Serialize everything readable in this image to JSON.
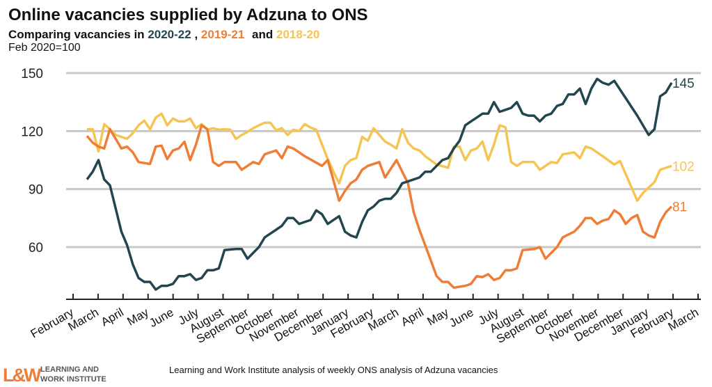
{
  "chart_data": {
    "type": "line",
    "title": "Online vacancies supplied by Adzuna to ONS",
    "subtitle_prefix": "Comparing vacancies in",
    "subtitle_and": "and",
    "subtitle_comma": ",",
    "ylabel": "Feb 2020=100",
    "ylim": [
      33,
      150
    ],
    "yticks": [
      60,
      90,
      120,
      150
    ],
    "grid": true,
    "xlabel": "",
    "x_unit": "weeks from start of February",
    "xticks": [
      "February",
      "March",
      "April",
      "May",
      "June",
      "July",
      "August",
      "September",
      "October",
      "November",
      "December",
      "January",
      "February",
      "March",
      "April",
      "May",
      "June",
      "July",
      "August",
      "September",
      "October",
      "November",
      "December",
      "January",
      "February",
      "March"
    ],
    "series": [
      {
        "name": "2020-22",
        "color": "#23454f",
        "end_label": "145",
        "points": [
          [
            0,
            95
          ],
          [
            1,
            99
          ],
          [
            2,
            105
          ],
          [
            3,
            95
          ],
          [
            4,
            92
          ],
          [
            5,
            80
          ],
          [
            6,
            68
          ],
          [
            7,
            61
          ],
          [
            8,
            51
          ],
          [
            9,
            44
          ],
          [
            10,
            42
          ],
          [
            11,
            42
          ],
          [
            12,
            38
          ],
          [
            13,
            40
          ],
          [
            14,
            40
          ],
          [
            15,
            41
          ],
          [
            16,
            45
          ],
          [
            17,
            45
          ],
          [
            18,
            46
          ],
          [
            19,
            43
          ],
          [
            20,
            44
          ],
          [
            21,
            48
          ],
          [
            22,
            48
          ],
          [
            23,
            49
          ],
          [
            24,
            58.5
          ],
          [
            26,
            59
          ],
          [
            27,
            59
          ],
          [
            28,
            54
          ],
          [
            29,
            57
          ],
          [
            30,
            60
          ],
          [
            31,
            65
          ],
          [
            32,
            67
          ],
          [
            33,
            69
          ],
          [
            34,
            71
          ],
          [
            35,
            75
          ],
          [
            36,
            75
          ],
          [
            37,
            72
          ],
          [
            38,
            73
          ],
          [
            39,
            74
          ],
          [
            40,
            79
          ],
          [
            41,
            77
          ],
          [
            42,
            72
          ],
          [
            43,
            74
          ],
          [
            44,
            76
          ],
          [
            45,
            68
          ],
          [
            46,
            66
          ],
          [
            47,
            65
          ],
          [
            48,
            73
          ],
          [
            49,
            79
          ],
          [
            50,
            81
          ],
          [
            51,
            84
          ],
          [
            52,
            85
          ],
          [
            53,
            85
          ],
          [
            54,
            88
          ],
          [
            55,
            93
          ],
          [
            56,
            94
          ],
          [
            57,
            95
          ],
          [
            58,
            96
          ],
          [
            59,
            99
          ],
          [
            60,
            99
          ],
          [
            61,
            102
          ],
          [
            62,
            105
          ],
          [
            63,
            106
          ],
          [
            64,
            111
          ],
          [
            65,
            115
          ],
          [
            66,
            123
          ],
          [
            67,
            125
          ],
          [
            68,
            127
          ],
          [
            69,
            129
          ],
          [
            70,
            129
          ],
          [
            71,
            135
          ],
          [
            72,
            130
          ],
          [
            73,
            131
          ],
          [
            74,
            132
          ],
          [
            75,
            135
          ],
          [
            76,
            129
          ],
          [
            77,
            128
          ],
          [
            78,
            128
          ],
          [
            79,
            125
          ],
          [
            80,
            128
          ],
          [
            81,
            129
          ],
          [
            82,
            133
          ],
          [
            83,
            134
          ],
          [
            84,
            139
          ],
          [
            85,
            139
          ],
          [
            86,
            142
          ],
          [
            87,
            134
          ],
          [
            88,
            142
          ],
          [
            89,
            147
          ],
          [
            90,
            145
          ],
          [
            91,
            144
          ],
          [
            92,
            146
          ],
          [
            94,
            137
          ],
          [
            96,
            128
          ],
          [
            98,
            118
          ],
          [
            99,
            121
          ],
          [
            100,
            138
          ],
          [
            101,
            140
          ],
          [
            102,
            145
          ]
        ]
      },
      {
        "name": "2019-21",
        "color": "#ef7d35",
        "end_label": "81",
        "points": [
          [
            0,
            117.5
          ],
          [
            1,
            114
          ],
          [
            2,
            112
          ],
          [
            3,
            111
          ],
          [
            4,
            121
          ],
          [
            5,
            116
          ],
          [
            6,
            111
          ],
          [
            7,
            112
          ],
          [
            8,
            109
          ],
          [
            9,
            104
          ],
          [
            11,
            103
          ],
          [
            12,
            112
          ],
          [
            13,
            112.5
          ],
          [
            14,
            105.5
          ],
          [
            15,
            110
          ],
          [
            16,
            111
          ],
          [
            17,
            114.5
          ],
          [
            18,
            105
          ],
          [
            19,
            113
          ],
          [
            20,
            123
          ],
          [
            21,
            121
          ],
          [
            22,
            104
          ],
          [
            23,
            102
          ],
          [
            24,
            104
          ],
          [
            26,
            104
          ],
          [
            27,
            100
          ],
          [
            28,
            102
          ],
          [
            29,
            104
          ],
          [
            30,
            103
          ],
          [
            31,
            108
          ],
          [
            32,
            109
          ],
          [
            33,
            110
          ],
          [
            34,
            106
          ],
          [
            35,
            112
          ],
          [
            36,
            111
          ],
          [
            38,
            107
          ],
          [
            41,
            102
          ],
          [
            42,
            105
          ],
          [
            44,
            84
          ],
          [
            45,
            89
          ],
          [
            46,
            93
          ],
          [
            47,
            95
          ],
          [
            48,
            100
          ],
          [
            49,
            102
          ],
          [
            51,
            104
          ],
          [
            52,
            96
          ],
          [
            54,
            105
          ],
          [
            56,
            93
          ],
          [
            57,
            78
          ],
          [
            58,
            69
          ],
          [
            59,
            61
          ],
          [
            60,
            53
          ],
          [
            61,
            45
          ],
          [
            62,
            42
          ],
          [
            63,
            42
          ],
          [
            64,
            39
          ],
          [
            66,
            40
          ],
          [
            67,
            41
          ],
          [
            68,
            45
          ],
          [
            69,
            44.5
          ],
          [
            70,
            46
          ],
          [
            71,
            43
          ],
          [
            72,
            44
          ],
          [
            73,
            48
          ],
          [
            74,
            48
          ],
          [
            75,
            49
          ],
          [
            76,
            58.5
          ],
          [
            78,
            59
          ],
          [
            79,
            60
          ],
          [
            80,
            54
          ],
          [
            81,
            57
          ],
          [
            82,
            60
          ],
          [
            83,
            65
          ],
          [
            84,
            66.5
          ],
          [
            85,
            68
          ],
          [
            86,
            71
          ],
          [
            87,
            75
          ],
          [
            88,
            75
          ],
          [
            89,
            72
          ],
          [
            90,
            73.7
          ],
          [
            91,
            74.5
          ],
          [
            92,
            79
          ],
          [
            93,
            77
          ],
          [
            94,
            72
          ],
          [
            95,
            75
          ],
          [
            96,
            76.6
          ],
          [
            97,
            68
          ],
          [
            98,
            66
          ],
          [
            99,
            65
          ],
          [
            100,
            73
          ],
          [
            101,
            78
          ],
          [
            102,
            81
          ]
        ]
      },
      {
        "name": "2018-20",
        "color": "#f6c453",
        "end_label": "102",
        "points": [
          [
            0,
            121
          ],
          [
            1,
            121
          ],
          [
            2,
            109.5
          ],
          [
            3,
            123.6
          ],
          [
            4,
            121
          ],
          [
            5,
            118
          ],
          [
            7,
            116
          ],
          [
            8,
            119
          ],
          [
            9,
            123
          ],
          [
            10,
            125.4
          ],
          [
            11,
            121
          ],
          [
            12,
            127
          ],
          [
            13,
            129
          ],
          [
            14,
            123
          ],
          [
            15,
            126.5
          ],
          [
            16,
            125
          ],
          [
            17,
            125
          ],
          [
            18,
            126.5
          ],
          [
            19,
            121.5
          ],
          [
            20,
            123.6
          ],
          [
            21,
            120.7
          ],
          [
            22,
            121.5
          ],
          [
            23,
            120.7
          ],
          [
            24,
            121
          ],
          [
            25,
            120.7
          ],
          [
            26,
            116
          ],
          [
            27,
            118
          ],
          [
            28,
            119.6
          ],
          [
            29,
            121.5
          ],
          [
            30,
            123
          ],
          [
            31,
            124.3
          ],
          [
            32,
            124.3
          ],
          [
            33,
            120.4
          ],
          [
            34,
            121.5
          ],
          [
            35,
            118
          ],
          [
            36,
            120.7
          ],
          [
            37,
            120
          ],
          [
            38,
            123.6
          ],
          [
            39,
            121.8
          ],
          [
            40,
            120.7
          ],
          [
            42,
            105.5
          ],
          [
            43,
            99
          ],
          [
            44,
            93
          ],
          [
            45,
            102
          ],
          [
            46,
            105
          ],
          [
            47,
            106
          ],
          [
            48,
            117
          ],
          [
            49,
            115
          ],
          [
            50,
            121.5
          ],
          [
            51,
            118
          ],
          [
            52,
            114.6
          ],
          [
            53,
            113
          ],
          [
            54,
            111
          ],
          [
            55,
            121
          ],
          [
            56,
            114
          ],
          [
            57,
            111
          ],
          [
            58,
            110
          ],
          [
            59,
            107
          ],
          [
            61,
            102.7
          ],
          [
            63,
            101
          ],
          [
            64,
            112
          ],
          [
            65,
            112
          ],
          [
            66,
            105
          ],
          [
            67,
            110
          ],
          [
            68,
            111
          ],
          [
            69,
            114.6
          ],
          [
            70,
            105
          ],
          [
            71,
            113
          ],
          [
            72,
            123
          ],
          [
            73,
            122
          ],
          [
            74,
            104
          ],
          [
            75,
            102
          ],
          [
            76,
            104
          ],
          [
            78,
            104
          ],
          [
            79,
            100
          ],
          [
            80,
            102
          ],
          [
            81,
            104
          ],
          [
            82,
            103.5
          ],
          [
            83,
            108
          ],
          [
            85,
            109
          ],
          [
            86,
            106
          ],
          [
            87,
            112
          ],
          [
            88,
            111
          ],
          [
            90,
            107
          ],
          [
            92,
            102.7
          ],
          [
            93,
            104.5
          ],
          [
            96,
            84
          ],
          [
            97,
            88
          ],
          [
            99,
            93.6
          ],
          [
            100,
            100
          ],
          [
            101,
            101
          ],
          [
            102,
            102
          ]
        ]
      }
    ],
    "source": "Learning and Work Institute analysis of weekly ONS analysis of Adzuna vacancies"
  },
  "logo": {
    "mark": "L&W",
    "line1": "LEARNING AND",
    "line2": "WORK INSTITUTE"
  }
}
